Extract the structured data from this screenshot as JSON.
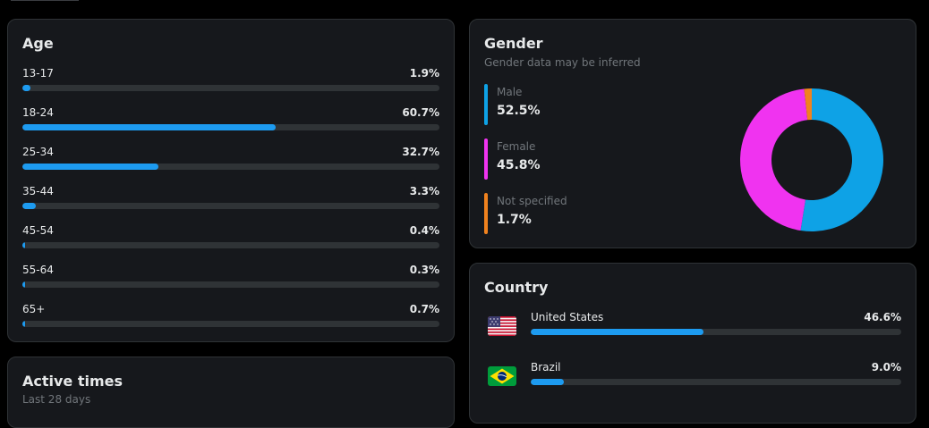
{
  "colors": {
    "accent": "#1d9bf0",
    "male": "#0ea2e6",
    "female": "#f033f0",
    "not_specified": "#f0821e"
  },
  "age": {
    "title": "Age",
    "items": [
      {
        "label": "13-17",
        "value": "1.9%",
        "pct": 1.9
      },
      {
        "label": "18-24",
        "value": "60.7%",
        "pct": 60.7
      },
      {
        "label": "25-34",
        "value": "32.7%",
        "pct": 32.7
      },
      {
        "label": "35-44",
        "value": "3.3%",
        "pct": 3.3
      },
      {
        "label": "45-54",
        "value": "0.4%",
        "pct": 0.4
      },
      {
        "label": "55-64",
        "value": "0.3%",
        "pct": 0.3
      },
      {
        "label": "65+",
        "value": "0.7%",
        "pct": 0.7
      }
    ]
  },
  "gender": {
    "title": "Gender",
    "subtitle": "Gender data may be inferred",
    "items": [
      {
        "label": "Male",
        "value": "52.5%",
        "pct": 52.5,
        "color_key": "male"
      },
      {
        "label": "Female",
        "value": "45.8%",
        "pct": 45.8,
        "color_key": "female"
      },
      {
        "label": "Not specified",
        "value": "1.7%",
        "pct": 1.7,
        "color_key": "not_specified"
      }
    ]
  },
  "country": {
    "title": "Country",
    "items": [
      {
        "name": "United States",
        "value": "46.6%",
        "pct": 46.6,
        "flag": "us-flag-icon"
      },
      {
        "name": "Brazil",
        "value": "9.0%",
        "pct": 9.0,
        "flag": "brazil-flag-icon"
      }
    ]
  },
  "active_times": {
    "title": "Active times",
    "subtitle": "Last 28 days"
  }
}
